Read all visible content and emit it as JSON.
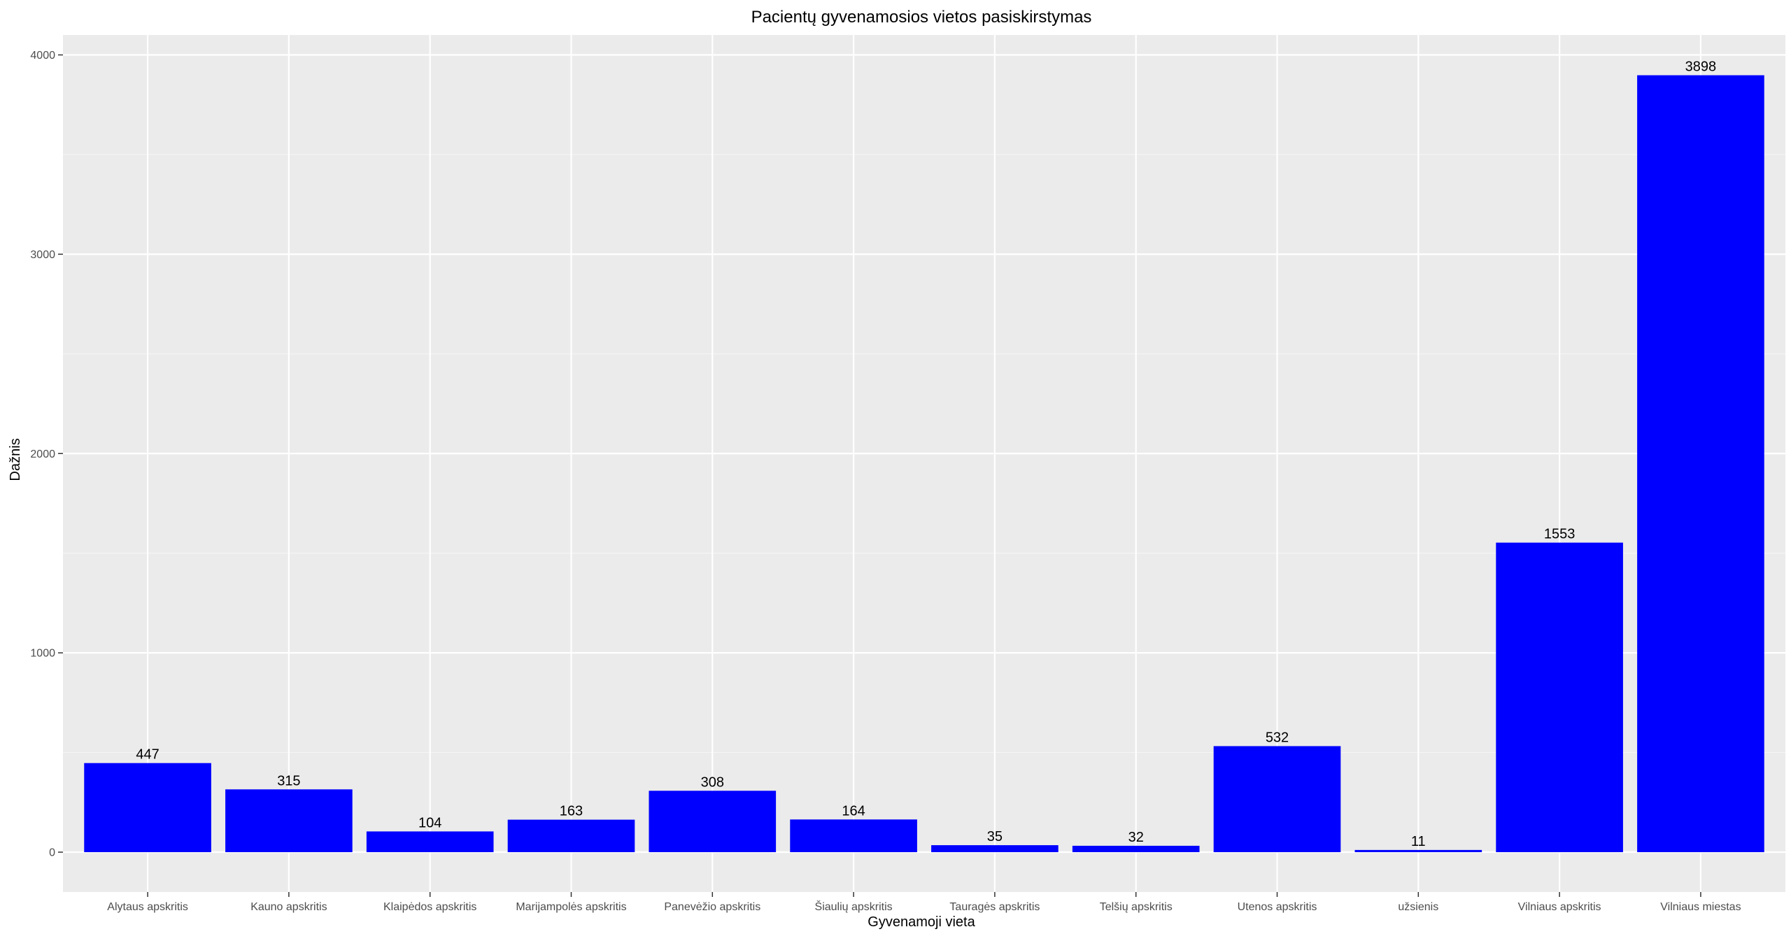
{
  "chart_data": {
    "type": "bar",
    "title": "Pacientų gyvenamosios vietos pasiskirstymas",
    "xlabel": "Gyvenamoji vieta",
    "ylabel": "Dažnis",
    "categories": [
      "Alytaus apskritis",
      "Kauno apskritis",
      "Klaipėdos apskritis",
      "Marijampolės apskritis",
      "Panevėžio apskritis",
      "Šiaulių apskritis",
      "Tauragės apskritis",
      "Telšių apskritis",
      "Utenos apskritis",
      "užsienis",
      "Vilniaus apskritis",
      "Vilniaus miestas"
    ],
    "values": [
      447,
      315,
      104,
      163,
      308,
      164,
      35,
      32,
      532,
      11,
      1553,
      3898
    ],
    "data_labels": [
      "447",
      "315",
      "104",
      "163",
      "308",
      "164",
      "35",
      "32",
      "532",
      "11",
      "1553",
      "3898"
    ],
    "yticks": [
      0,
      1000,
      2000,
      3000,
      4000
    ],
    "ytick_labels": [
      "0",
      "1000",
      "2000",
      "3000",
      "4000"
    ],
    "ylim": [
      -200,
      4100
    ],
    "grid": true,
    "colors": {
      "bar": "#0000FF",
      "panel": "#EBEBEB",
      "grid_major": "#FFFFFF",
      "grid_minor": "#F5F5F5"
    }
  }
}
